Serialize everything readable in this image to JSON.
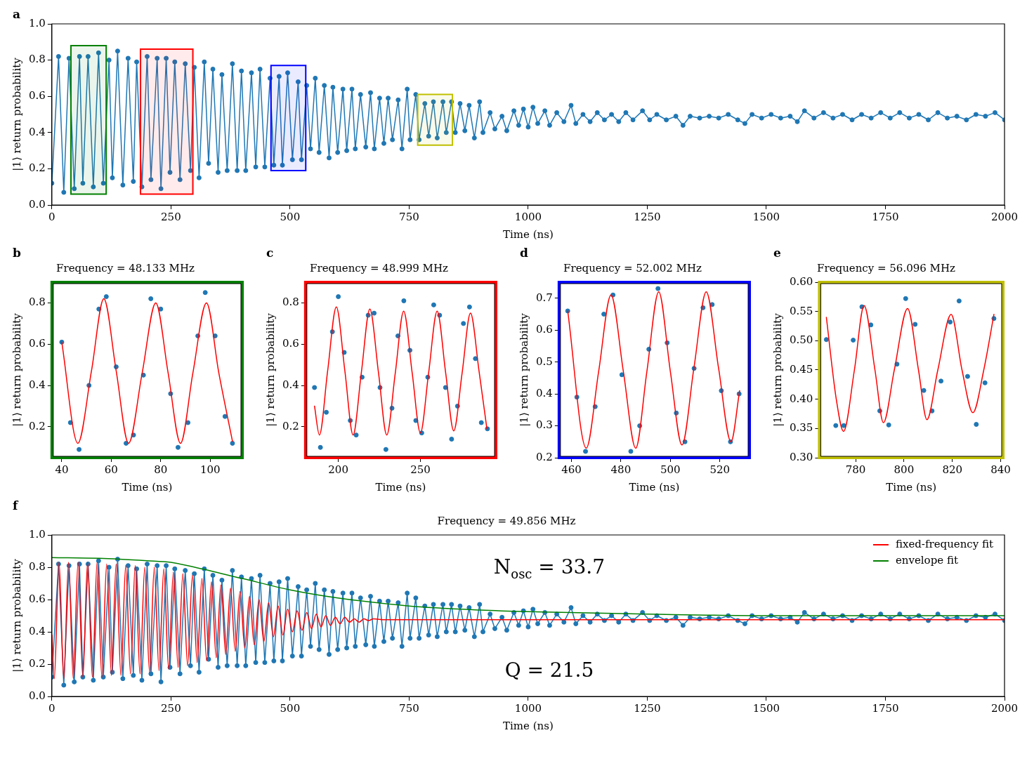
{
  "chart_data": [
    {
      "type": "line",
      "xlabel": "Time (ns)",
      "ylabel": "|1⟩ return probability",
      "annotations": [
        "a"
      ],
      "xlim": [
        0,
        2000
      ],
      "ylim": [
        0,
        1
      ],
      "xticks": [
        0,
        250,
        500,
        750,
        1000,
        1250,
        1500,
        1750,
        2000
      ],
      "yticks": [
        {
          "value": 0,
          "label": "0.0"
        },
        0.2,
        0.4,
        0.6,
        0.8,
        {
          "value": 1,
          "label": "1.0"
        }
      ],
      "bands": [
        {
          "axis": "x",
          "from": 40,
          "to": 114,
          "color": "#008000"
        },
        {
          "axis": "x",
          "from": 186,
          "to": 296,
          "color": "#ff0000"
        },
        {
          "axis": "x",
          "from": 460,
          "to": 533,
          "color": "#0000ff"
        },
        {
          "axis": "x",
          "from": 768,
          "to": 841,
          "color": "#bfbf00"
        }
      ],
      "series": [
        {
          "marker": "circle",
          "color": "#1f77b4",
          "x": [
            0,
            14,
            25,
            36,
            47,
            58,
            65,
            76,
            87,
            98,
            108,
            120,
            127,
            138,
            149,
            160,
            171,
            178,
            189,
            200,
            208,
            221,
            229,
            240,
            248,
            258,
            269,
            280,
            291,
            299,
            309,
            320,
            329,
            338,
            349,
            357,
            368,
            379,
            389,
            398,
            407,
            419,
            428,
            437,
            447,
            458,
            466,
            477,
            484,
            495,
            505,
            517,
            524,
            535,
            543,
            553,
            561,
            572,
            582,
            590,
            600,
            611,
            619,
            630,
            637,
            648,
            659,
            669,
            677,
            688,
            697,
            706,
            715,
            727,
            735,
            746,
            752,
            764,
            771,
            783,
            791,
            801,
            809,
            821,
            828,
            839,
            847,
            857,
            867,
            876,
            887,
            898,
            905,
            920,
            930,
            945,
            955,
            970,
            980,
            990,
            1000,
            1010,
            1020,
            1035,
            1045,
            1060,
            1075,
            1090,
            1100,
            1115,
            1130,
            1145,
            1160,
            1175,
            1190,
            1205,
            1220,
            1240,
            1255,
            1270,
            1290,
            1310,
            1325,
            1340,
            1360,
            1380,
            1400,
            1420,
            1440,
            1455,
            1470,
            1490,
            1510,
            1530,
            1550,
            1565,
            1580,
            1600,
            1620,
            1640,
            1660,
            1680,
            1700,
            1720,
            1740,
            1760,
            1780,
            1800,
            1820,
            1840,
            1860,
            1880,
            1900,
            1920,
            1940,
            1960,
            1980,
            2000
          ],
          "values": [
            0.12,
            0.82,
            0.07,
            0.81,
            0.09,
            0.82,
            0.12,
            0.82,
            0.1,
            0.84,
            0.12,
            0.8,
            0.15,
            0.85,
            0.11,
            0.81,
            0.13,
            0.79,
            0.1,
            0.82,
            0.14,
            0.81,
            0.09,
            0.81,
            0.18,
            0.79,
            0.14,
            0.78,
            0.19,
            0.76,
            0.15,
            0.79,
            0.23,
            0.75,
            0.18,
            0.72,
            0.19,
            0.78,
            0.19,
            0.74,
            0.19,
            0.73,
            0.21,
            0.75,
            0.21,
            0.7,
            0.22,
            0.71,
            0.22,
            0.73,
            0.25,
            0.68,
            0.25,
            0.66,
            0.31,
            0.7,
            0.29,
            0.66,
            0.26,
            0.65,
            0.29,
            0.64,
            0.3,
            0.64,
            0.31,
            0.61,
            0.32,
            0.62,
            0.31,
            0.59,
            0.34,
            0.59,
            0.36,
            0.58,
            0.31,
            0.64,
            0.36,
            0.61,
            0.36,
            0.56,
            0.38,
            0.57,
            0.37,
            0.57,
            0.4,
            0.57,
            0.4,
            0.56,
            0.41,
            0.55,
            0.37,
            0.57,
            0.4,
            0.51,
            0.42,
            0.49,
            0.41,
            0.52,
            0.44,
            0.53,
            0.43,
            0.54,
            0.45,
            0.52,
            0.44,
            0.51,
            0.46,
            0.55,
            0.45,
            0.5,
            0.46,
            0.51,
            0.47,
            0.5,
            0.46,
            0.51,
            0.47,
            0.52,
            0.47,
            0.5,
            0.47,
            0.49,
            0.44,
            0.49,
            0.48,
            0.49,
            0.48,
            0.5,
            0.47,
            0.45,
            0.5,
            0.48,
            0.5,
            0.48,
            0.49,
            0.46,
            0.52,
            0.48,
            0.51,
            0.48,
            0.5,
            0.47,
            0.5,
            0.48,
            0.51,
            0.48,
            0.51,
            0.48,
            0.5,
            0.47,
            0.51,
            0.48,
            0.49,
            0.47,
            0.5,
            0.49,
            0.51,
            0.47
          ]
        }
      ]
    },
    {
      "type": "line",
      "title": "Frequency = 48.133 MHz",
      "xlabel": "Time (ns)",
      "ylabel": "|1⟩ return probability",
      "annotations": [
        "b"
      ],
      "xlim": [
        36,
        113
      ],
      "ylim": [
        0.05,
        0.9
      ],
      "xticks": [
        40,
        60,
        80,
        100
      ],
      "yticks": [
        0.2,
        0.4,
        0.6,
        0.8
      ],
      "series": [
        {
          "type": "scatter",
          "marker": "circle",
          "color": "#1f77b4",
          "x": [
            40,
            43.5,
            47,
            51,
            55,
            58,
            62,
            66,
            69,
            73,
            76,
            80,
            84,
            87,
            91,
            95,
            98,
            102,
            106,
            109
          ],
          "values": [
            0.61,
            0.22,
            0.09,
            0.4,
            0.77,
            0.83,
            0.49,
            0.12,
            0.16,
            0.45,
            0.82,
            0.77,
            0.36,
            0.1,
            0.22,
            0.64,
            0.85,
            0.64,
            0.25,
            0.12
          ]
        },
        {
          "color": "#ff0000",
          "x": [
            40,
            46.5,
            52,
            57,
            62,
            67,
            72.5,
            78,
            83,
            88,
            93,
            98.5,
            103.5,
            109
          ],
          "values": [
            0.61,
            0.12,
            0.47,
            0.82,
            0.47,
            0.12,
            0.46,
            0.8,
            0.46,
            0.12,
            0.46,
            0.8,
            0.46,
            0.13
          ]
        }
      ]
    },
    {
      "type": "line",
      "title": "Frequency = 48.999 MHz",
      "xlabel": "Time (ns)",
      "ylabel": "|1⟩ return probability",
      "annotations": [
        "c"
      ],
      "xlim": [
        180,
        296
      ],
      "ylim": [
        0.05,
        0.9
      ],
      "xticks": [
        200,
        250
      ],
      "yticks": [
        0.2,
        0.4,
        0.6,
        0.8
      ],
      "series": [
        {
          "type": "scatter",
          "marker": "circle",
          "color": "#1f77b4",
          "x": [
            185.5,
            189.1,
            192.7,
            196.4,
            200,
            203.6,
            207.3,
            210.9,
            214.5,
            218.2,
            221.8,
            225.4,
            229,
            232.7,
            236.3,
            239.9,
            243.6,
            247.2,
            250.8,
            254.5,
            258.1,
            261.7,
            265.3,
            269,
            272.6,
            276.2,
            279.9,
            283.5,
            287.1,
            290.8
          ],
          "values": [
            0.39,
            0.1,
            0.27,
            0.66,
            0.83,
            0.56,
            0.23,
            0.16,
            0.44,
            0.74,
            0.75,
            0.39,
            0.09,
            0.29,
            0.64,
            0.81,
            0.57,
            0.23,
            0.17,
            0.44,
            0.79,
            0.74,
            0.39,
            0.14,
            0.3,
            0.7,
            0.78,
            0.53,
            0.22,
            0.19
          ]
        },
        {
          "color": "#ff0000",
          "x": [
            185.5,
            188.5,
            193.5,
            198.8,
            204,
            209,
            214,
            219.2,
            224.5,
            229.5,
            234.7,
            239.8,
            245,
            250,
            255,
            260.2,
            265.4,
            270.3,
            275.4,
            280.5,
            285.7,
            290.5
          ],
          "values": [
            0.3,
            0.16,
            0.47,
            0.78,
            0.47,
            0.16,
            0.46,
            0.77,
            0.46,
            0.16,
            0.46,
            0.76,
            0.46,
            0.17,
            0.46,
            0.76,
            0.46,
            0.18,
            0.46,
            0.75,
            0.47,
            0.19
          ]
        }
      ]
    },
    {
      "type": "line",
      "title": "Frequency = 52.002 MHz",
      "xlabel": "Time (ns)",
      "ylabel": "|1⟩ return probability",
      "annotations": [
        "d"
      ],
      "xlim": [
        455,
        532
      ],
      "ylim": [
        0.2,
        0.75
      ],
      "xticks": [
        460,
        480,
        500,
        520
      ],
      "yticks": [
        0.2,
        0.3,
        0.4,
        0.5,
        0.6,
        0.7
      ],
      "series": [
        {
          "type": "scatter",
          "marker": "circle",
          "color": "#1f77b4",
          "x": [
            458.5,
            462.2,
            465.7,
            469.6,
            473.1,
            476.8,
            480.4,
            484,
            487.6,
            491.3,
            495,
            498.7,
            502.4,
            505.9,
            509.6,
            513.2,
            516.9,
            520.6,
            524.3,
            527.8
          ],
          "values": [
            0.66,
            0.39,
            0.22,
            0.36,
            0.65,
            0.71,
            0.46,
            0.22,
            0.3,
            0.54,
            0.73,
            0.56,
            0.34,
            0.25,
            0.48,
            0.67,
            0.68,
            0.41,
            0.25,
            0.4
          ]
        },
        {
          "color": "#ff0000",
          "x": [
            458.5,
            466,
            471,
            476,
            481,
            486,
            490.5,
            495.3,
            500,
            504.7,
            509.5,
            514.5,
            519.5,
            524.5,
            528
          ],
          "values": [
            0.66,
            0.23,
            0.47,
            0.71,
            0.47,
            0.23,
            0.47,
            0.72,
            0.47,
            0.24,
            0.48,
            0.72,
            0.48,
            0.25,
            0.41
          ]
        }
      ]
    },
    {
      "type": "line",
      "title": "Frequency = 56.096 MHz",
      "xlabel": "Time (ns)",
      "ylabel": "|1⟩ return probability",
      "annotations": [
        "e"
      ],
      "xlim": [
        765,
        841
      ],
      "ylim": [
        0.3,
        0.6
      ],
      "xticks": [
        780,
        800,
        820,
        840
      ],
      "yticks": [
        {
          "value": 0.3,
          "label": "0.30"
        },
        0.35,
        {
          "value": 0.4,
          "label": "0.40"
        },
        0.45,
        {
          "value": 0.5,
          "label": "0.50"
        },
        0.55,
        {
          "value": 0.6,
          "label": "0.60"
        }
      ],
      "series": [
        {
          "type": "scatter",
          "marker": "circle",
          "color": "#1f77b4",
          "x": [
            767.9,
            771.8,
            775.1,
            779,
            782.6,
            786.3,
            790,
            793.7,
            797.1,
            800.7,
            804.6,
            808.2,
            811.6,
            815.3,
            819.1,
            822.8,
            826.3,
            829.9,
            833.5,
            837.2
          ],
          "values": [
            0.502,
            0.355,
            0.355,
            0.501,
            0.558,
            0.527,
            0.38,
            0.356,
            0.46,
            0.572,
            0.528,
            0.415,
            0.38,
            0.431,
            0.532,
            0.568,
            0.439,
            0.357,
            0.428,
            0.538
          ]
        },
        {
          "color": "#ff0000",
          "x": [
            767.9,
            772,
            775,
            779.5,
            783.5,
            788,
            791.5,
            796,
            801.5,
            806,
            809.5,
            814,
            819.5,
            824,
            828.5,
            833,
            837.2
          ],
          "values": [
            0.54,
            0.4,
            0.345,
            0.45,
            0.56,
            0.45,
            0.36,
            0.45,
            0.555,
            0.45,
            0.365,
            0.45,
            0.545,
            0.45,
            0.377,
            0.45,
            0.545
          ]
        }
      ]
    },
    {
      "type": "line",
      "title": "Frequency = 49.856 MHz",
      "xlabel": "Time (ns)",
      "ylabel": "|1⟩ return probability",
      "annotations": [
        "f",
        "N$_{osc}$ = 33.7",
        "Q = 21.5"
      ],
      "legend": "top right",
      "xlim": [
        0,
        2000
      ],
      "ylim": [
        0,
        1
      ],
      "xticks": [
        0,
        250,
        500,
        750,
        1000,
        1250,
        1500,
        1750,
        2000
      ],
      "yticks": [
        {
          "value": 0,
          "label": "0.0"
        },
        0.2,
        0.4,
        0.6,
        0.8,
        {
          "value": 1,
          "label": "1.0"
        }
      ],
      "series": [
        {
          "marker": "circle",
          "color": "#1f77b4",
          "x": [
            0,
            14,
            25,
            36,
            47,
            58,
            65,
            76,
            87,
            98,
            108,
            120,
            127,
            138,
            149,
            160,
            171,
            178,
            189,
            200,
            208,
            221,
            229,
            240,
            248,
            258,
            269,
            280,
            291,
            299,
            309,
            320,
            329,
            338,
            349,
            357,
            368,
            379,
            389,
            398,
            407,
            419,
            428,
            437,
            447,
            458,
            466,
            477,
            484,
            495,
            505,
            517,
            524,
            535,
            543,
            553,
            561,
            572,
            582,
            590,
            600,
            611,
            619,
            630,
            637,
            648,
            659,
            669,
            677,
            688,
            697,
            706,
            715,
            727,
            735,
            746,
            752,
            764,
            771,
            783,
            791,
            801,
            809,
            821,
            828,
            839,
            847,
            857,
            867,
            876,
            887,
            898,
            905,
            920,
            930,
            945,
            955,
            970,
            980,
            990,
            1000,
            1010,
            1020,
            1035,
            1045,
            1060,
            1075,
            1090,
            1100,
            1115,
            1130,
            1145,
            1160,
            1175,
            1190,
            1205,
            1220,
            1240,
            1255,
            1270,
            1290,
            1310,
            1325,
            1340,
            1360,
            1380,
            1400,
            1420,
            1440,
            1455,
            1470,
            1490,
            1510,
            1530,
            1550,
            1565,
            1580,
            1600,
            1620,
            1640,
            1660,
            1680,
            1700,
            1720,
            1740,
            1760,
            1780,
            1800,
            1820,
            1840,
            1860,
            1880,
            1900,
            1920,
            1940,
            1960,
            1980,
            2000
          ],
          "values": [
            0.12,
            0.82,
            0.07,
            0.81,
            0.09,
            0.82,
            0.12,
            0.82,
            0.1,
            0.84,
            0.12,
            0.8,
            0.15,
            0.85,
            0.11,
            0.81,
            0.13,
            0.79,
            0.1,
            0.82,
            0.14,
            0.81,
            0.09,
            0.81,
            0.18,
            0.79,
            0.14,
            0.78,
            0.19,
            0.76,
            0.15,
            0.79,
            0.23,
            0.75,
            0.18,
            0.72,
            0.19,
            0.78,
            0.19,
            0.74,
            0.19,
            0.73,
            0.21,
            0.75,
            0.21,
            0.7,
            0.22,
            0.71,
            0.22,
            0.73,
            0.25,
            0.68,
            0.25,
            0.66,
            0.31,
            0.7,
            0.29,
            0.66,
            0.26,
            0.65,
            0.29,
            0.64,
            0.3,
            0.64,
            0.31,
            0.61,
            0.32,
            0.62,
            0.31,
            0.59,
            0.34,
            0.59,
            0.36,
            0.58,
            0.31,
            0.64,
            0.36,
            0.61,
            0.36,
            0.56,
            0.38,
            0.57,
            0.37,
            0.57,
            0.4,
            0.57,
            0.4,
            0.56,
            0.41,
            0.55,
            0.37,
            0.57,
            0.4,
            0.51,
            0.42,
            0.49,
            0.41,
            0.52,
            0.44,
            0.53,
            0.43,
            0.54,
            0.45,
            0.52,
            0.44,
            0.51,
            0.46,
            0.55,
            0.45,
            0.5,
            0.46,
            0.51,
            0.47,
            0.5,
            0.46,
            0.51,
            0.47,
            0.52,
            0.47,
            0.5,
            0.47,
            0.49,
            0.44,
            0.49,
            0.48,
            0.49,
            0.48,
            0.5,
            0.47,
            0.45,
            0.5,
            0.48,
            0.5,
            0.48,
            0.49,
            0.46,
            0.52,
            0.48,
            0.51,
            0.48,
            0.5,
            0.47,
            0.5,
            0.48,
            0.51,
            0.48,
            0.51,
            0.48,
            0.5,
            0.47,
            0.51,
            0.48,
            0.49,
            0.47,
            0.5,
            0.49,
            0.51,
            0.47
          ]
        },
        {
          "name": "fixed-frequency fit",
          "color": "#ff0000",
          "x": [
            0,
            5,
            15,
            25,
            35,
            45,
            55,
            65,
            75,
            85,
            95,
            105,
            115,
            125,
            135,
            145,
            155,
            165,
            175,
            185,
            195,
            205,
            215,
            225,
            235,
            245,
            255,
            265,
            275,
            285,
            295,
            305,
            315,
            325,
            335,
            345,
            355,
            365,
            375,
            385,
            395,
            405,
            415,
            425,
            435,
            445,
            455,
            465,
            475,
            485,
            495,
            505,
            515,
            525,
            535,
            545,
            555,
            565,
            575,
            585,
            595,
            605,
            615,
            625,
            635,
            645,
            655,
            665,
            675,
            700,
            2000
          ],
          "values": [
            0.38,
            0.11,
            0.83,
            0.11,
            0.83,
            0.11,
            0.83,
            0.12,
            0.83,
            0.12,
            0.83,
            0.12,
            0.82,
            0.13,
            0.82,
            0.13,
            0.81,
            0.14,
            0.81,
            0.14,
            0.8,
            0.15,
            0.8,
            0.16,
            0.79,
            0.17,
            0.77,
            0.18,
            0.76,
            0.19,
            0.75,
            0.21,
            0.73,
            0.22,
            0.71,
            0.24,
            0.69,
            0.26,
            0.67,
            0.28,
            0.65,
            0.3,
            0.62,
            0.32,
            0.6,
            0.34,
            0.58,
            0.37,
            0.56,
            0.38,
            0.54,
            0.4,
            0.53,
            0.41,
            0.52,
            0.42,
            0.51,
            0.43,
            0.5,
            0.44,
            0.49,
            0.45,
            0.49,
            0.46,
            0.48,
            0.46,
            0.48,
            0.47,
            0.48,
            0.475,
            0.475
          ]
        },
        {
          "name": "envelope fit",
          "color": "#008000",
          "x": [
            0,
            100,
            200,
            250,
            300,
            400,
            500,
            600,
            750,
            900,
            1000,
            1250,
            1500,
            2000
          ],
          "values": [
            0.86,
            0.855,
            0.84,
            0.83,
            0.8,
            0.73,
            0.66,
            0.61,
            0.56,
            0.535,
            0.525,
            0.51,
            0.5,
            0.5
          ]
        }
      ]
    }
  ]
}
